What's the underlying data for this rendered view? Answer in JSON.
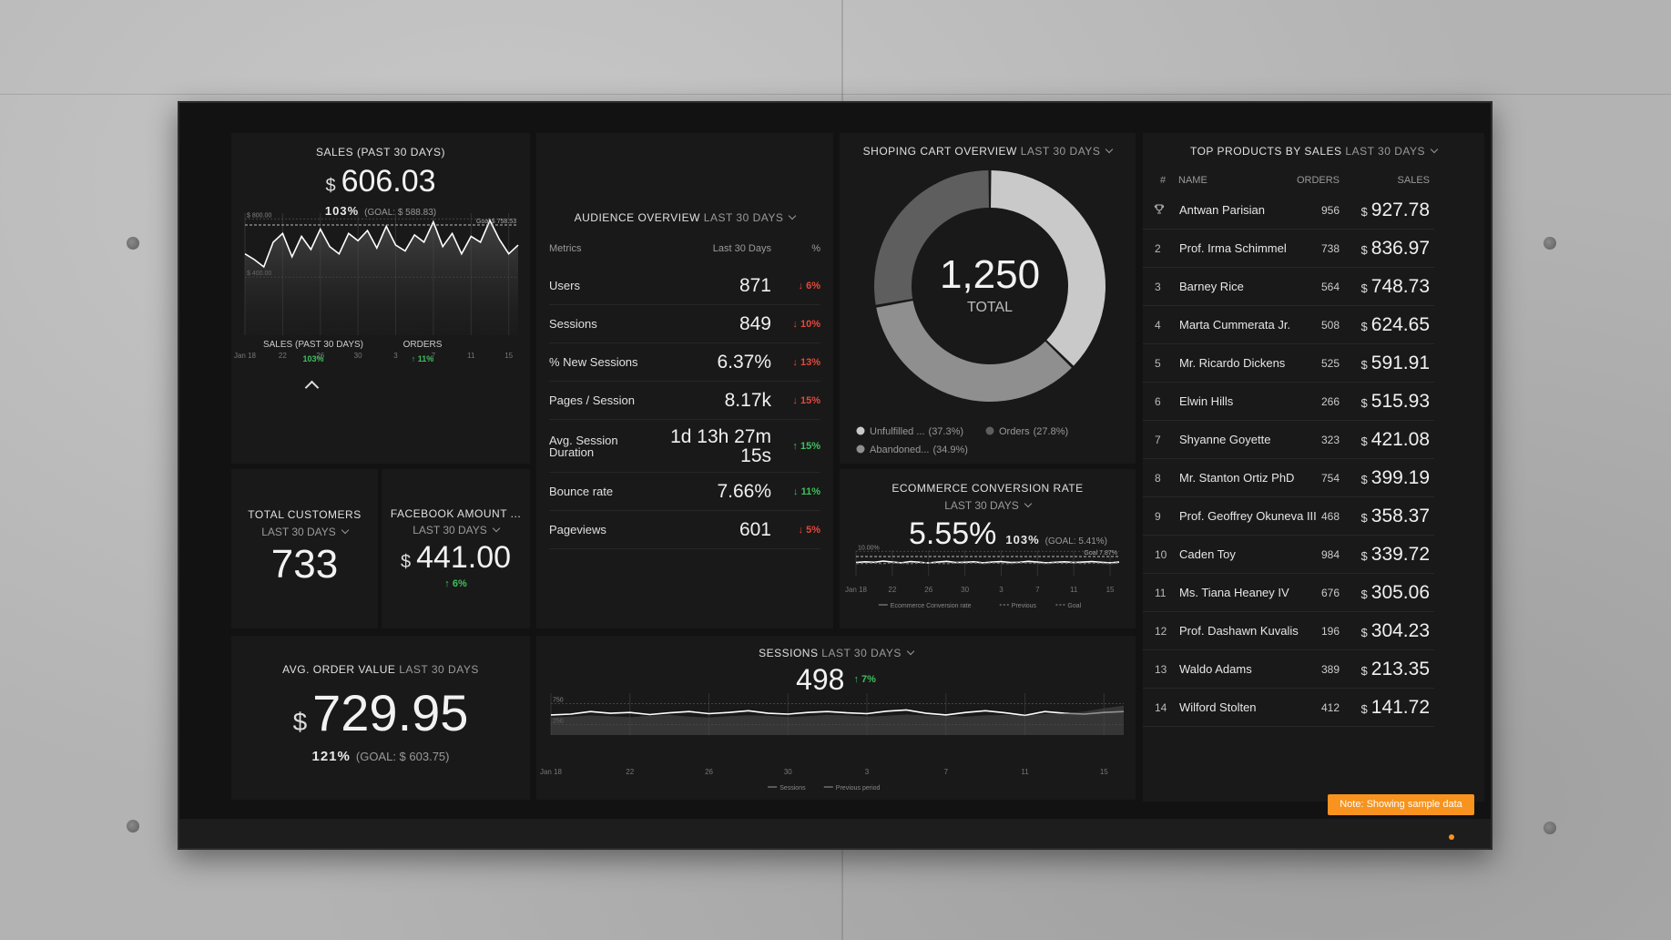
{
  "sales": {
    "title": "SALES (PAST 30 DAYS)",
    "currency": "$",
    "value": "606.03",
    "percent": "103%",
    "goal": "(GOAL: $ 588.83)",
    "chart": {
      "type": "line",
      "ylim": [
        0,
        840
      ],
      "yticks": [
        {
          "value": 800,
          "label": "$ 800.00"
        },
        {
          "value": 400,
          "label": "$ 400.00"
        }
      ],
      "goal": {
        "value": 758.53,
        "label": "Goal $ 758.53"
      },
      "area": true,
      "vgrid": true,
      "legend": false,
      "categories": [
        "Jan 18",
        null,
        null,
        null,
        "22",
        null,
        null,
        null,
        "26",
        null,
        null,
        null,
        "30",
        null,
        null,
        null,
        "3",
        null,
        null,
        null,
        "7",
        null,
        null,
        null,
        "11",
        null,
        null,
        null,
        "15",
        null
      ],
      "series": [
        {
          "name": "Sales",
          "color": "#ffffff",
          "values": [
            560,
            520,
            470,
            640,
            700,
            540,
            680,
            590,
            730,
            610,
            560,
            700,
            650,
            720,
            600,
            750,
            620,
            580,
            690,
            640,
            780,
            610,
            700,
            560,
            680,
            640,
            790,
            660,
            560,
            620
          ]
        }
      ]
    },
    "tabs": [
      {
        "label": "SALES (PAST 30 DAYS)",
        "change": "103%",
        "color": "#3fbf5f"
      },
      {
        "label": "ORDERS",
        "change": "↑ 11%",
        "color": "#3fbf5f"
      }
    ]
  },
  "customers": {
    "title": "TOTAL CUSTOMERS",
    "period": "LAST 30 DAYS",
    "value": "733"
  },
  "facebook": {
    "title": "FACEBOOK AMOUNT ...",
    "period": "LAST 30 DAYS",
    "currency": "$",
    "value": "441.00",
    "change": "↑ 6%",
    "color": "#3fbf5f"
  },
  "avg_order": {
    "title": "AVG. ORDER VALUE",
    "period": "LAST 30 DAYS",
    "currency": "$",
    "value": "729.95",
    "percent": "121%",
    "goal": "(GOAL: $ 603.75)"
  },
  "audience": {
    "title": "AUDIENCE OVERVIEW",
    "period": "LAST 30 DAYS",
    "headers": [
      "Metrics",
      "Last 30 Days",
      "%"
    ],
    "rows": [
      {
        "metric": "Users",
        "value": "871",
        "change": "↓ 6%",
        "color": "#e5483b"
      },
      {
        "metric": "Sessions",
        "value": "849",
        "change": "↓ 10%",
        "color": "#e5483b"
      },
      {
        "metric": "% New Sessions",
        "value": "6.37%",
        "change": "↓ 13%",
        "color": "#e5483b"
      },
      {
        "metric": "Pages / Session",
        "value": "8.17k",
        "change": "↓ 15%",
        "color": "#e5483b"
      },
      {
        "metric": "Avg. Session Duration",
        "value": "1d 13h 27m 15s",
        "change": "↑ 15%",
        "color": "#3fbf5f"
      },
      {
        "metric": "Bounce rate",
        "value": "7.66%",
        "change": "↓ 11%",
        "color": "#3fbf5f"
      },
      {
        "metric": "Pageviews",
        "value": "601",
        "change": "↓ 5%",
        "color": "#e5483b"
      }
    ]
  },
  "cart": {
    "type": "donut",
    "title": "SHOPING CART OVERVIEW",
    "period": "LAST 30 DAYS",
    "total": "1,250",
    "total_label": "TOTAL",
    "segments": [
      {
        "name": "Unfulfilled ...",
        "value": 37.3,
        "label": "(37.3%)",
        "color": "#c9c9c9"
      },
      {
        "name": "Orders",
        "value": 27.8,
        "label": "(27.8%)",
        "color": "#5e5e5e"
      },
      {
        "name": "Abandoned...",
        "value": 34.9,
        "label": "(34.9%)",
        "color": "#8f8f8f"
      }
    ]
  },
  "ecommerce": {
    "title": "ECOMMERCE CONVERSION RATE",
    "period": "LAST 30 DAYS",
    "value": "5.55%",
    "percent": "103%",
    "goal": "(GOAL: 5.41%)",
    "chart": {
      "type": "line",
      "ylim": [
        0,
        10.5
      ],
      "yticks": [
        {
          "value": 10,
          "label": "10.00%"
        }
      ],
      "goal": {
        "value": 7.87,
        "label": "Goal 7.87%",
        "name": "Goal"
      },
      "vgrid": true,
      "legend": true,
      "categories": [
        "Jan 18",
        null,
        null,
        null,
        "22",
        null,
        null,
        null,
        "26",
        null,
        null,
        null,
        "30",
        null,
        null,
        null,
        "3",
        null,
        null,
        null,
        "7",
        null,
        null,
        null,
        "11",
        null,
        null,
        null,
        "15",
        null
      ],
      "series": [
        {
          "name": "Ecommerce Conversion rate",
          "color": "#ffffff",
          "values": [
            5.4,
            5.7,
            5.5,
            6.0,
            5.6,
            5.3,
            5.8,
            5.5,
            5.2,
            5.6,
            5.9,
            5.4,
            5.5,
            5.7,
            5.3,
            5.6,
            5.8,
            5.4,
            5.5,
            5.9,
            5.6,
            5.3,
            5.5,
            5.7,
            5.4,
            5.6,
            5.8,
            5.5,
            5.3,
            5.6
          ]
        },
        {
          "name": "Previous",
          "color": "#666666",
          "style": "dash",
          "values": [
            5.0,
            5.1,
            5.2,
            5.0,
            5.3,
            5.1,
            5.0,
            5.2,
            5.3,
            5.1,
            5.0,
            5.2,
            5.1,
            5.3,
            5.0,
            5.2,
            5.1,
            5.0,
            5.3,
            5.2,
            5.1,
            5.0,
            5.2,
            5.1,
            5.3,
            5.0,
            5.2,
            5.1,
            5.0,
            5.2
          ]
        }
      ]
    }
  },
  "sessions": {
    "title": "SESSIONS",
    "period": "LAST 30 DAYS",
    "value": "498",
    "change": "↑ 7%",
    "color": "#3fbf5f",
    "chart": {
      "type": "line",
      "ylim": [
        0,
        1000
      ],
      "yticks": [
        750,
        250
      ],
      "vgrid": true,
      "legend": true,
      "categories": [
        "Jan 18",
        null,
        null,
        null,
        "22",
        null,
        null,
        null,
        "26",
        null,
        null,
        null,
        "30",
        null,
        null,
        null,
        "3",
        null,
        null,
        null,
        "7",
        null,
        null,
        null,
        "11",
        null,
        null,
        null,
        "15",
        null
      ],
      "series": [
        {
          "name": "Sessions",
          "color": "#ffffff",
          "values": [
            480,
            500,
            560,
            520,
            540,
            490,
            530,
            560,
            510,
            540,
            580,
            520,
            500,
            540,
            560,
            530,
            510,
            570,
            600,
            520,
            480,
            540,
            580,
            530,
            470,
            560,
            520,
            500,
            540,
            560
          ]
        },
        {
          "name": "Previous period",
          "color": "#4a4a4a",
          "style": "area",
          "values": [
            420,
            440,
            470,
            450,
            430,
            460,
            480,
            440,
            420,
            450,
            470,
            460,
            430,
            450,
            480,
            470,
            440,
            460,
            490,
            470,
            450,
            440,
            470,
            480,
            460,
            500,
            520,
            560,
            640,
            700
          ]
        }
      ]
    }
  },
  "products": {
    "title": "TOP PRODUCTS BY SALES",
    "period": "LAST 30 DAYS",
    "headers": [
      "#",
      "NAME",
      "ORDERS",
      "SALES"
    ],
    "currency": "$",
    "rows": [
      {
        "rank": null,
        "name": "Antwan Parisian",
        "orders": 956,
        "sales": 927.78
      },
      {
        "rank": 2,
        "name": "Prof. Irma Schimmel",
        "orders": 738,
        "sales": 836.97
      },
      {
        "rank": 3,
        "name": "Barney Rice",
        "orders": 564,
        "sales": 748.73
      },
      {
        "rank": 4,
        "name": "Marta Cummerata Jr.",
        "orders": 508,
        "sales": 624.65
      },
      {
        "rank": 5,
        "name": "Mr. Ricardo Dickens",
        "orders": 525,
        "sales": 591.91
      },
      {
        "rank": 6,
        "name": "Elwin Hills",
        "orders": 266,
        "sales": 515.93
      },
      {
        "rank": 7,
        "name": "Shyanne Goyette",
        "orders": 323,
        "sales": 421.08
      },
      {
        "rank": 8,
        "name": "Mr. Stanton Ortiz PhD",
        "orders": 754,
        "sales": 399.19
      },
      {
        "rank": 9,
        "name": "Prof. Geoffrey Okuneva III",
        "orders": 468,
        "sales": 358.37
      },
      {
        "rank": 10,
        "name": "Caden Toy",
        "orders": 984,
        "sales": 339.72
      },
      {
        "rank": 11,
        "name": "Ms. Tiana Heaney IV",
        "orders": 676,
        "sales": 305.06
      },
      {
        "rank": 12,
        "name": "Prof. Dashawn Kuvalis",
        "orders": 196,
        "sales": 304.23
      },
      {
        "rank": 13,
        "name": "Waldo Adams",
        "orders": 389,
        "sales": 213.35
      },
      {
        "rank": 14,
        "name": "Wilford Stolten",
        "orders": 412,
        "sales": 141.72
      }
    ]
  },
  "note": "Note: Showing sample data"
}
